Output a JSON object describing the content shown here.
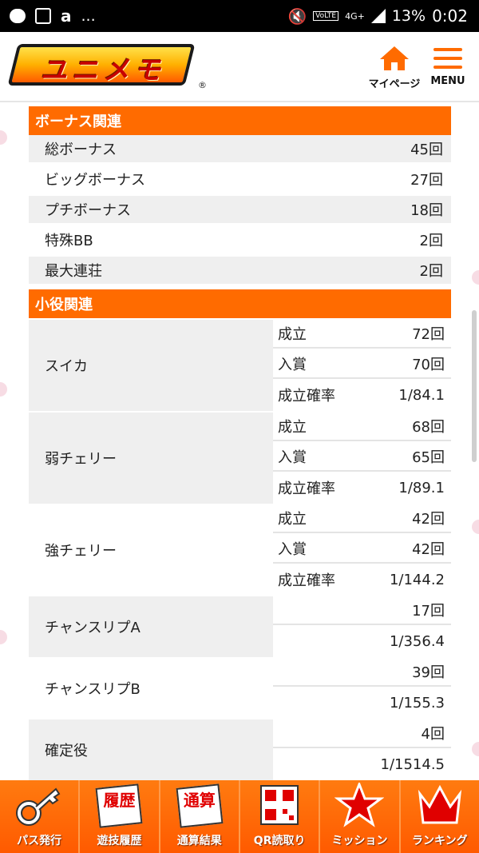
{
  "status_bar": {
    "left_icons": [
      "chat-bubble-icon",
      "grid-box-icon",
      "amazon-icon"
    ],
    "amazon_label": "a",
    "more": "...",
    "volte": "VoLTE",
    "network": "4G+",
    "battery": "13%",
    "time": "0:02"
  },
  "header": {
    "logo_text": "ユニメモ",
    "logo_reg": "®",
    "mypage_label": "マイページ",
    "menu_label": "MENU"
  },
  "bonus": {
    "title": "ボーナス関連",
    "rows": [
      {
        "label": "総ボーナス",
        "value": "45回"
      },
      {
        "label": "ビッグボーナス",
        "value": "27回"
      },
      {
        "label": "プチボーナス",
        "value": "18回"
      },
      {
        "label": "特殊BB",
        "value": "2回"
      },
      {
        "label": "最大連荘",
        "value": "2回"
      }
    ]
  },
  "koyaku": {
    "title": "小役関連",
    "groups": [
      {
        "name": "スイカ",
        "rows": [
          {
            "k": "成立",
            "v": "72回"
          },
          {
            "k": "入賞",
            "v": "70回"
          },
          {
            "k": "成立確率",
            "v": "1/84.1"
          }
        ]
      },
      {
        "name": "弱チェリー",
        "rows": [
          {
            "k": "成立",
            "v": "68回"
          },
          {
            "k": "入賞",
            "v": "65回"
          },
          {
            "k": "成立確率",
            "v": "1/89.1"
          }
        ]
      },
      {
        "name": "強チェリー",
        "rows": [
          {
            "k": "成立",
            "v": "42回"
          },
          {
            "k": "入賞",
            "v": "42回"
          },
          {
            "k": "成立確率",
            "v": "1/144.2"
          }
        ]
      },
      {
        "name": "チャンスリプA",
        "rows": [
          {
            "k": "",
            "v": "17回"
          },
          {
            "k": "",
            "v": "1/356.4"
          }
        ]
      },
      {
        "name": "チャンスリプB",
        "rows": [
          {
            "k": "",
            "v": "39回"
          },
          {
            "k": "",
            "v": "1/155.3"
          }
        ]
      },
      {
        "name": "確定役",
        "rows": [
          {
            "k": "",
            "v": "4回"
          },
          {
            "k": "",
            "v": "1/1514.5"
          }
        ]
      }
    ]
  },
  "bottom_nav": [
    {
      "label": "パス発行",
      "icon": "key-icon"
    },
    {
      "label": "遊技履歴",
      "icon": "history-icon",
      "tile": "履歴"
    },
    {
      "label": "通算結果",
      "icon": "total-icon",
      "tile": "通算"
    },
    {
      "label": "QR読取り",
      "icon": "qr-icon"
    },
    {
      "label": "ミッション",
      "icon": "star-icon"
    },
    {
      "label": "ランキング",
      "icon": "crown-icon"
    }
  ],
  "colors": {
    "accent": "#ff6b00",
    "row_alt": "#efefef"
  }
}
